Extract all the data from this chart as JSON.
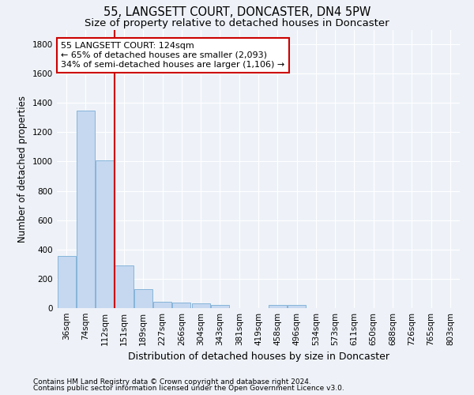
{
  "title": "55, LANGSETT COURT, DONCASTER, DN4 5PW",
  "subtitle": "Size of property relative to detached houses in Doncaster",
  "xlabel": "Distribution of detached houses by size in Doncaster",
  "ylabel": "Number of detached properties",
  "categories": [
    "36sqm",
    "74sqm",
    "112sqm",
    "151sqm",
    "189sqm",
    "227sqm",
    "266sqm",
    "304sqm",
    "343sqm",
    "381sqm",
    "419sqm",
    "458sqm",
    "496sqm",
    "534sqm",
    "573sqm",
    "611sqm",
    "650sqm",
    "688sqm",
    "726sqm",
    "765sqm",
    "803sqm"
  ],
  "values": [
    355,
    1350,
    1010,
    290,
    130,
    45,
    40,
    35,
    20,
    0,
    0,
    20,
    20,
    0,
    0,
    0,
    0,
    0,
    0,
    0,
    0
  ],
  "bar_color": "#c5d8f0",
  "bar_edge_color": "#7aadd4",
  "red_line_index": 2,
  "annotation_text": "55 LANGSETT COURT: 124sqm\n← 65% of detached houses are smaller (2,093)\n34% of semi-detached houses are larger (1,106) →",
  "annotation_box_color": "#ffffff",
  "annotation_box_edge": "#cc0000",
  "red_line_color": "#cc0000",
  "ylim": [
    0,
    1900
  ],
  "yticks": [
    0,
    200,
    400,
    600,
    800,
    1000,
    1200,
    1400,
    1600,
    1800
  ],
  "footer_line1": "Contains HM Land Registry data © Crown copyright and database right 2024.",
  "footer_line2": "Contains public sector information licensed under the Open Government Licence v3.0.",
  "bg_color": "#eef2f8",
  "grid_color": "#ffffff",
  "title_fontsize": 10.5,
  "subtitle_fontsize": 9.5,
  "ylabel_fontsize": 8.5,
  "xlabel_fontsize": 9,
  "tick_fontsize": 7.5,
  "footer_fontsize": 6.5,
  "annotation_fontsize": 8
}
